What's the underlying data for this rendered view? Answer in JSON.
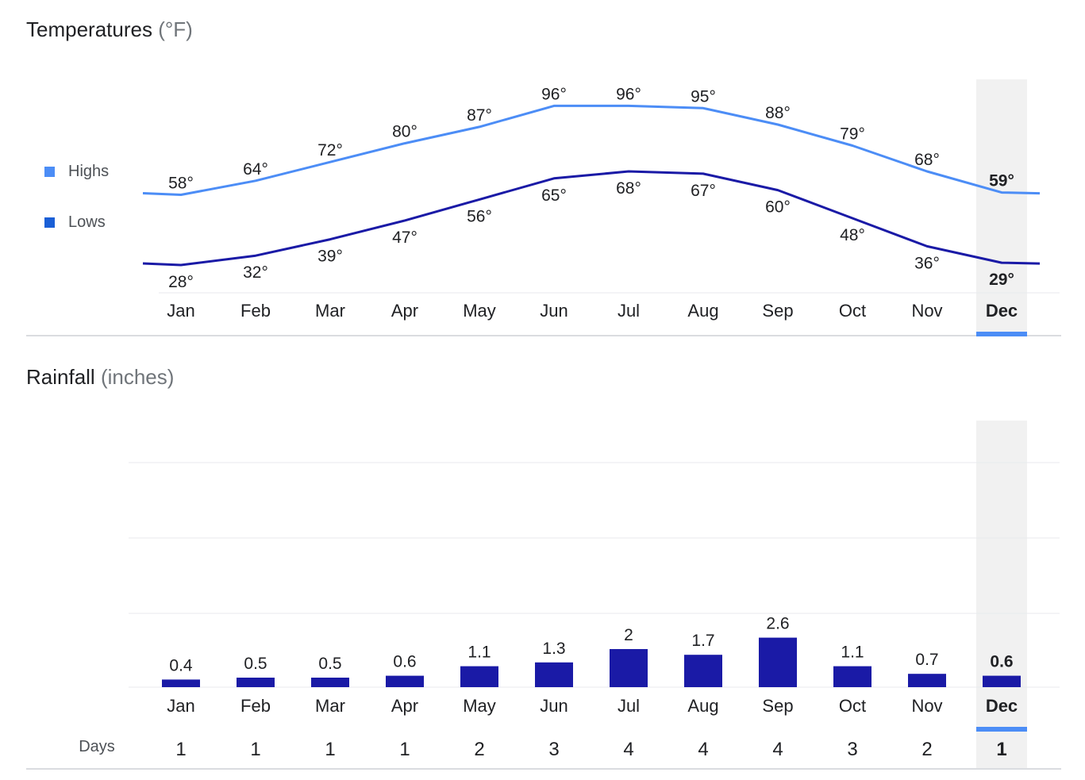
{
  "temperatures": {
    "title": "Temperatures",
    "unit_label": "(°F)",
    "legend": {
      "highs": {
        "label": "Highs",
        "color": "#4c8df6"
      },
      "lows": {
        "label": "Lows",
        "color": "#1a1aa6"
      }
    }
  },
  "rainfall": {
    "title": "Rainfall",
    "unit_label": "(inches)",
    "days_label": "Days"
  },
  "selected_month": "Dec",
  "colors": {
    "highs_line": "#4c8df6",
    "lows_line": "#1a1aa6",
    "bars": "#1a1aa6",
    "highlight_bg": "#f1f1f1",
    "highlight_underline": "#4c8df6",
    "grid": "#e8eaed"
  },
  "chart_data": [
    {
      "type": "line",
      "title": "Temperatures (°F)",
      "categories": [
        "Jan",
        "Feb",
        "Mar",
        "Apr",
        "May",
        "Jun",
        "Jul",
        "Aug",
        "Sep",
        "Oct",
        "Nov",
        "Dec"
      ],
      "series": [
        {
          "name": "Highs",
          "values": [
            58,
            64,
            72,
            80,
            87,
            96,
            96,
            95,
            88,
            79,
            68,
            59
          ],
          "labels": [
            "58°",
            "64°",
            "72°",
            "80°",
            "87°",
            "96°",
            "96°",
            "95°",
            "88°",
            "79°",
            "68°",
            "59°"
          ]
        },
        {
          "name": "Lows",
          "values": [
            28,
            32,
            39,
            47,
            56,
            65,
            68,
            67,
            60,
            48,
            36,
            29
          ],
          "labels": [
            "28°",
            "32°",
            "39°",
            "47°",
            "56°",
            "65°",
            "68°",
            "67°",
            "60°",
            "48°",
            "36°",
            "29°"
          ]
        }
      ],
      "grid": false,
      "legend": "left"
    },
    {
      "type": "bar",
      "title": "Rainfall (inches)",
      "categories": [
        "Jan",
        "Feb",
        "Mar",
        "Apr",
        "May",
        "Jun",
        "Jul",
        "Aug",
        "Sep",
        "Oct",
        "Nov",
        "Dec"
      ],
      "values": [
        0.4,
        0.5,
        0.5,
        0.6,
        1.1,
        1.3,
        2,
        1.7,
        2.6,
        1.1,
        0.7,
        0.6
      ],
      "labels": [
        "0.4",
        "0.5",
        "0.5",
        "0.6",
        "1.1",
        "1.3",
        "2",
        "1.7",
        "2.6",
        "1.1",
        "0.7",
        "0.6"
      ],
      "ylim": [
        0,
        6
      ],
      "grid": true,
      "days": {
        "label": "Days",
        "values": [
          "1",
          "1",
          "1",
          "1",
          "2",
          "3",
          "4",
          "4",
          "4",
          "3",
          "2",
          "1"
        ]
      }
    }
  ]
}
